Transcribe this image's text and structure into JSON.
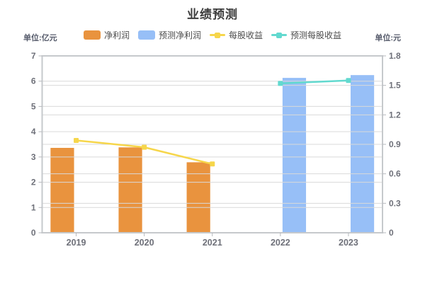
{
  "title": "业绩预测",
  "left_unit": "单位:亿元",
  "right_unit": "单位:元",
  "legend": [
    {
      "label": "净利润",
      "type": "bar",
      "color": "#E9933E"
    },
    {
      "label": "预测净利润",
      "type": "bar",
      "color": "#97BFF7"
    },
    {
      "label": "每股收益",
      "type": "line",
      "color": "#F6D64B"
    },
    {
      "label": "预测每股收益",
      "type": "line",
      "color": "#62D9CF"
    }
  ],
  "colors": {
    "title_text": "#3D3D3D",
    "unit_text": "#565B6B",
    "legend_text": "#4C4C4C",
    "axis_label": "#6E7079",
    "grid_line": "#D9D9D9",
    "plot_border": "#C6C9CC",
    "tick": "#B6B9BD",
    "background": "#FFFFFF"
  },
  "chart_data": {
    "type": "bar",
    "subtype": "grouped bars + lines, dual y-axis",
    "title": "业绩预测",
    "categories": [
      "2019",
      "2020",
      "2021",
      "2022",
      "2023"
    ],
    "series": [
      {
        "name": "净利润",
        "type": "bar",
        "axis": "left",
        "color": "#E9933E",
        "values": [
          3.36,
          3.38,
          2.79,
          null,
          null
        ]
      },
      {
        "name": "预测净利润",
        "type": "bar",
        "axis": "left",
        "color": "#97BFF7",
        "values": [
          null,
          null,
          null,
          6.13,
          6.24
        ]
      },
      {
        "name": "每股收益",
        "type": "line",
        "axis": "right",
        "color": "#F6D64B",
        "values": [
          0.94,
          0.87,
          0.7,
          null,
          null
        ]
      },
      {
        "name": "预测每股收益",
        "type": "line",
        "axis": "right",
        "color": "#62D9CF",
        "values": [
          null,
          null,
          null,
          1.52,
          1.55
        ]
      }
    ],
    "left_axis": {
      "title": "单位:亿元",
      "min": 0,
      "max": 7,
      "tick_labels": [
        "0",
        "1",
        "2",
        "3",
        "4",
        "5",
        "6",
        "7"
      ]
    },
    "right_axis": {
      "title": "单位:元",
      "min": 0,
      "max": 1.8,
      "tick_labels": [
        "0",
        "0.3",
        "0.6",
        "0.9",
        "1.2",
        "1.5",
        "1.8"
      ]
    },
    "grid": true,
    "legend_position": "top"
  }
}
